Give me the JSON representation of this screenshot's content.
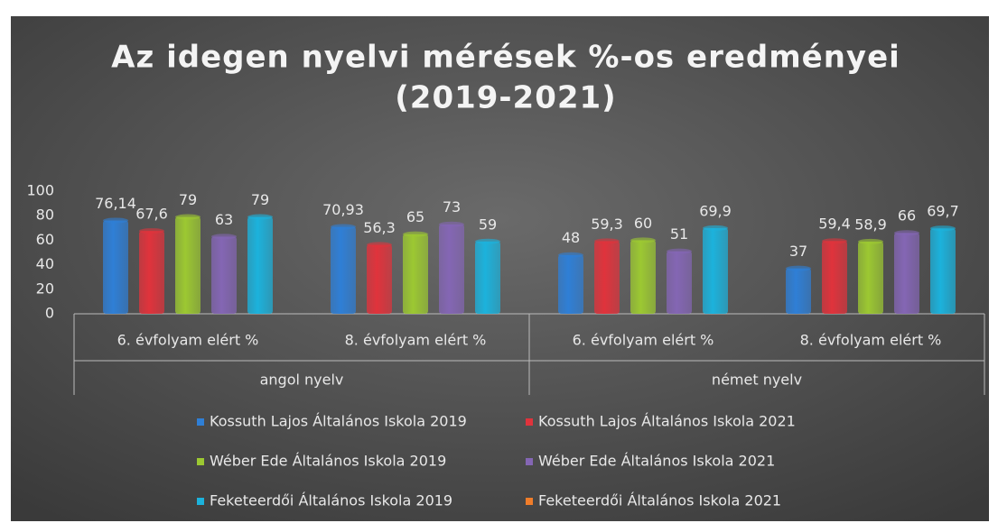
{
  "chart_data": {
    "type": "bar",
    "title": [
      "Az idegen nyelvi mérések %-os eredményei",
      "(2019-2021)"
    ],
    "categories": [
      "6. évfolyam elért %",
      "8. évfolyam elért %",
      "6. évfolyam elért %",
      "8. évfolyam elért %"
    ],
    "category_groups": [
      "angol nyelv",
      "német nyelv"
    ],
    "ylim": [
      0,
      100
    ],
    "yticks": [
      0,
      20,
      40,
      60,
      80,
      100
    ],
    "grid": false,
    "legend": "bottom",
    "series": [
      {
        "name": "Kossuth Lajos Általános Iskola 2019",
        "color": "#2f7fd6",
        "values": [
          76.14,
          70.93,
          48,
          37
        ],
        "value_labels": [
          "76,14",
          "70,93",
          "48",
          "37"
        ]
      },
      {
        "name": "Kossuth Lajos Általános Iskola 2021",
        "color": "#e0333c",
        "values": [
          67.6,
          56.3,
          59.3,
          59.4
        ],
        "value_labels": [
          "67,6",
          "56,3",
          "59,3",
          "59,4"
        ]
      },
      {
        "name": "Wéber Ede Általános Iskola 2019",
        "color": "#9cc832",
        "values": [
          79,
          65,
          60,
          58.9
        ],
        "value_labels": [
          "79",
          "65",
          "60",
          "58,9"
        ]
      },
      {
        "name": "Wéber Ede Általános Iskola 2021",
        "color": "#8466b4",
        "values": [
          63,
          73,
          51,
          66
        ],
        "value_labels": [
          "63",
          "73",
          "51",
          "66"
        ]
      },
      {
        "name": "Feketeerdői Általános Iskola  2019",
        "color": "#1cb2dc",
        "values": [
          79,
          59,
          69.9,
          69.7
        ],
        "value_labels": [
          "79",
          "59",
          "69,9",
          "69,7"
        ]
      },
      {
        "name": "Feketeerdői Általános Iskola  2021",
        "color": "#f07d2a",
        "values": [
          null,
          null,
          null,
          null
        ]
      }
    ]
  }
}
